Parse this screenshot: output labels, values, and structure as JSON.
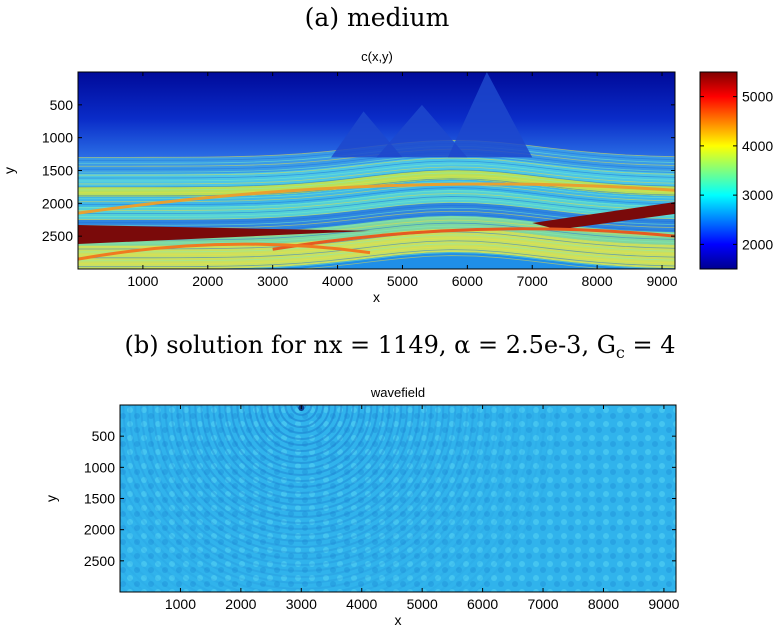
{
  "chart_data": [
    {
      "type": "heatmap",
      "panel_title": "(a) medium",
      "title": "c(x,y)",
      "xlabel": "x",
      "ylabel": "y",
      "xlim": [
        0,
        9200
      ],
      "ylim": [
        3000,
        0
      ],
      "xticks": [
        1000,
        2000,
        3000,
        4000,
        5000,
        6000,
        7000,
        8000,
        9000
      ],
      "yticks": [
        500,
        1000,
        1500,
        2000,
        2500
      ],
      "colorbar": {
        "range": [
          1500,
          5500
        ],
        "ticks": [
          2000,
          3000,
          4000,
          5000
        ],
        "colormap": "jet"
      },
      "grid": false
    },
    {
      "type": "heatmap",
      "panel_title": "(b) solution for nx = 1149, α = 2.5e-3, G",
      "panel_title_sub": "c",
      "panel_title_tail": " = 4",
      "title": "wavefield",
      "xlabel": "x",
      "ylabel": "y",
      "xlim": [
        0,
        9200
      ],
      "ylim": [
        3000,
        0
      ],
      "xticks": [
        1000,
        2000,
        3000,
        4000,
        5000,
        6000,
        7000,
        8000,
        9000
      ],
      "yticks": [
        500,
        1000,
        1500,
        2000,
        2500
      ],
      "source_x": 3000,
      "source_y": 0,
      "grid": false
    }
  ],
  "colors": {
    "jet_low": "#00008f",
    "jet_mid": "#23d6f1",
    "jet_high": "#800000",
    "wavefield_base": "#2fb4ec"
  }
}
